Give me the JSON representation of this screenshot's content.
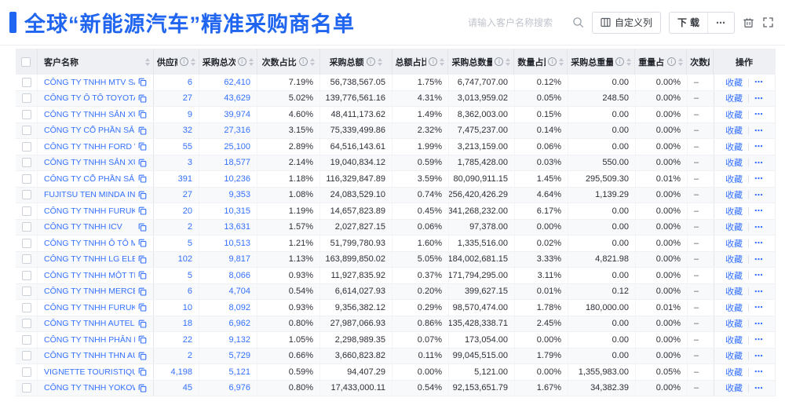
{
  "header": {
    "title": "全球“新能源汽车”精准采购商名单",
    "search_placeholder": "请输入客户名称搜索",
    "customize_label": "自定义列",
    "download_label": "下载",
    "more_label": "⋯"
  },
  "colors": {
    "accent": "#2065f0",
    "link": "#3370ff"
  },
  "table": {
    "columns": [
      {
        "label": "客户名称",
        "info": false,
        "sort": true
      },
      {
        "label": "供应商",
        "info": true,
        "sort": true
      },
      {
        "label": "采购总次数",
        "info": true,
        "sort": true
      },
      {
        "label": "次数占比",
        "info": true,
        "sort": true
      },
      {
        "label": "采购总额",
        "info": true,
        "sort": true
      },
      {
        "label": "总额占比",
        "info": true,
        "sort": true
      },
      {
        "label": "采购总数量",
        "info": true,
        "sort": true
      },
      {
        "label": "数量占比",
        "info": true,
        "sort": true
      },
      {
        "label": "采购总重量",
        "info": true,
        "sort": true
      },
      {
        "label": "重量占比",
        "info": true,
        "sort": true
      },
      {
        "label": "次数趋势",
        "info": false,
        "sort": false
      },
      {
        "label": "操作",
        "info": false,
        "sort": false
      }
    ],
    "ops": {
      "favorite": "收藏",
      "more": "⋯"
    },
    "trend_placeholder": "–",
    "rows": [
      [
        "CÔNG TY TNHH MTV SẢN XUẤ...",
        "6",
        "62,410",
        "7.19%",
        "56,738,567.05",
        "1.75%",
        "6,747,707.00",
        "0.12%",
        "0.00",
        "0.00%"
      ],
      [
        "CÔNG TY Ô TÔ TOYOTA VIỆT ...",
        "27",
        "43,629",
        "5.02%",
        "139,776,561.16",
        "4.31%",
        "3,013,959.02",
        "0.05%",
        "248.50",
        "0.00%"
      ],
      [
        "CÔNG TY TNHH SẢN XUẤT VÀ ...",
        "9",
        "39,974",
        "4.60%",
        "48,411,173.62",
        "1.49%",
        "8,362,003.00",
        "0.15%",
        "0.00",
        "0.00%"
      ],
      [
        "CÔNG TY CỔ PHẦN SẢN XUẤT...",
        "32",
        "27,316",
        "3.15%",
        "75,339,499.86",
        "2.32%",
        "7,475,237.00",
        "0.14%",
        "0.00",
        "0.00%"
      ],
      [
        "CÔNG TY TNHH FORD VIỆT NAM",
        "55",
        "25,100",
        "2.89%",
        "64,516,143.61",
        "1.99%",
        "3,213,159.00",
        "0.06%",
        "0.00",
        "0.00%"
      ],
      [
        "CÔNG TY TNHH SẢN XUẤT VÀ ...",
        "3",
        "18,577",
        "2.14%",
        "19,040,834.12",
        "0.59%",
        "1,785,428.00",
        "0.03%",
        "550.00",
        "0.00%"
      ],
      [
        "CÔNG TY CỔ PHẦN SẢN XUẤT...",
        "391",
        "10,236",
        "1.18%",
        "116,329,847.89",
        "3.59%",
        "80,090,911.15",
        "1.45%",
        "295,509.30",
        "0.01%"
      ],
      [
        "FUJITSU TEN MINDA INDIA PVT...",
        "27",
        "9,353",
        "1.08%",
        "24,083,529.10",
        "0.74%",
        "256,420,426.29",
        "4.64%",
        "1,139.29",
        "0.00%"
      ],
      [
        "CÔNG TY TNHH FURUKAWA A...",
        "20",
        "10,315",
        "1.19%",
        "14,657,823.89",
        "0.45%",
        "341,268,232.00",
        "6.17%",
        "0.00",
        "0.00%"
      ],
      [
        "CÔNG TY TNHH ICV",
        "2",
        "13,631",
        "1.57%",
        "2,027,827.15",
        "0.06%",
        "97,378.00",
        "0.00%",
        "0.00",
        "0.00%"
      ],
      [
        "CÔNG TY TNHH Ô TÔ MITSUBI...",
        "5",
        "10,513",
        "1.21%",
        "51,799,780.93",
        "1.60%",
        "1,335,516.00",
        "0.02%",
        "0.00",
        "0.00%"
      ],
      [
        "CÔNG TY TNHH LG ELECTRON...",
        "102",
        "9,817",
        "1.13%",
        "163,899,850.02",
        "5.05%",
        "184,002,681.15",
        "3.33%",
        "4,821.98",
        "0.00%"
      ],
      [
        "CÔNG TY TNHH MỘT THÀNH V...",
        "5",
        "8,066",
        "0.93%",
        "11,927,835.92",
        "0.37%",
        "171,794,295.00",
        "3.11%",
        "0.00",
        "0.00%"
      ],
      [
        "CÔNG TY TNHH MERCEDES–B...",
        "6",
        "4,704",
        "0.54%",
        "6,614,027.93",
        "0.20%",
        "399,627.15",
        "0.01%",
        "0.12",
        "0.00%"
      ],
      [
        "CÔNG TY TNHH FURUKAWA A...",
        "10",
        "8,092",
        "0.93%",
        "9,356,382.12",
        "0.29%",
        "98,570,474.00",
        "1.78%",
        "180,000.00",
        "0.01%"
      ],
      [
        "CÔNG TY TNHH AUTEL VIỆT N...",
        "18",
        "6,962",
        "0.80%",
        "27,987,066.93",
        "0.86%",
        "135,428,338.71",
        "2.45%",
        "0.00",
        "0.00%"
      ],
      [
        "CÔNG TY TNHH PHÂN PHỐI T...",
        "22",
        "9,132",
        "1.05%",
        "2,298,989.35",
        "0.07%",
        "173,054.00",
        "0.00%",
        "0.00",
        "0.00%"
      ],
      [
        "CÔNG TY TNHH THN AUTOPAR...",
        "2",
        "5,729",
        "0.66%",
        "3,660,823.82",
        "0.11%",
        "99,045,515.00",
        "1.79%",
        "0.00",
        "0.00%"
      ],
      [
        "VIGNETTE TOURISTIQUE G UNI...",
        "4,198",
        "5,121",
        "0.59%",
        "94,407.29",
        "0.00%",
        "5,121.00",
        "0.00%",
        "1,355,983.00",
        "0.05%"
      ],
      [
        "CÔNG TY TNHH YOKOWO VIỆT...",
        "45",
        "6,976",
        "0.80%",
        "17,433,000.11",
        "0.54%",
        "92,153,651.79",
        "1.67%",
        "34,382.39",
        "0.00%"
      ]
    ]
  }
}
